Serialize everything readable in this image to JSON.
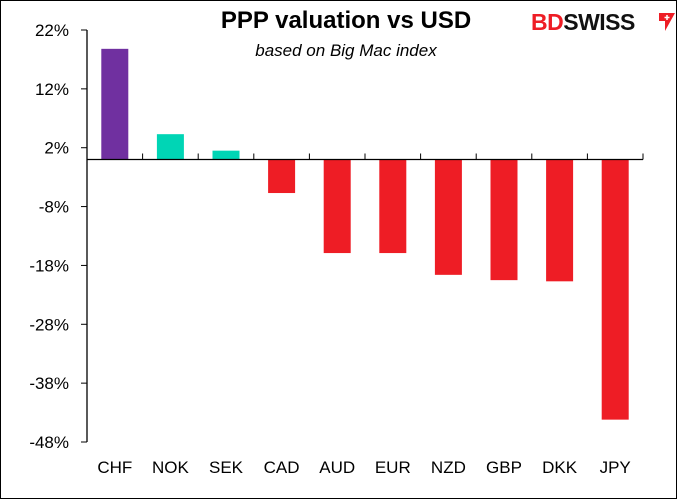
{
  "chart_data": {
    "type": "bar",
    "title": "PPP valuation vs USD",
    "subtitle": "based on Big Mac index",
    "categories": [
      "CHF",
      "NOK",
      "SEK",
      "CAD",
      "AUD",
      "EUR",
      "NZD",
      "GBP",
      "DKK",
      "JPY"
    ],
    "values": [
      18.8,
      4.3,
      1.5,
      -5.7,
      -15.9,
      -15.9,
      -19.6,
      -20.5,
      -20.7,
      -44.2
    ],
    "colors": [
      "#7030a0",
      "#00d5b5",
      "#00d5b5",
      "#ee1d25",
      "#ee1d25",
      "#ee1d25",
      "#ee1d25",
      "#ee1d25",
      "#ee1d25",
      "#ee1d25"
    ],
    "ylim": [
      -48,
      22
    ],
    "yticks": [
      22,
      12,
      2,
      -8,
      -18,
      -28,
      -38,
      -48
    ],
    "ytick_labels": [
      "22%",
      "12%",
      "2%",
      "-8%",
      "-18%",
      "-28%",
      "-38%",
      "-48%"
    ],
    "xlabel": "",
    "ylabel": "",
    "grid": false,
    "legend": "none"
  },
  "logo": {
    "part1": "BD",
    "part2": "SWISS"
  }
}
